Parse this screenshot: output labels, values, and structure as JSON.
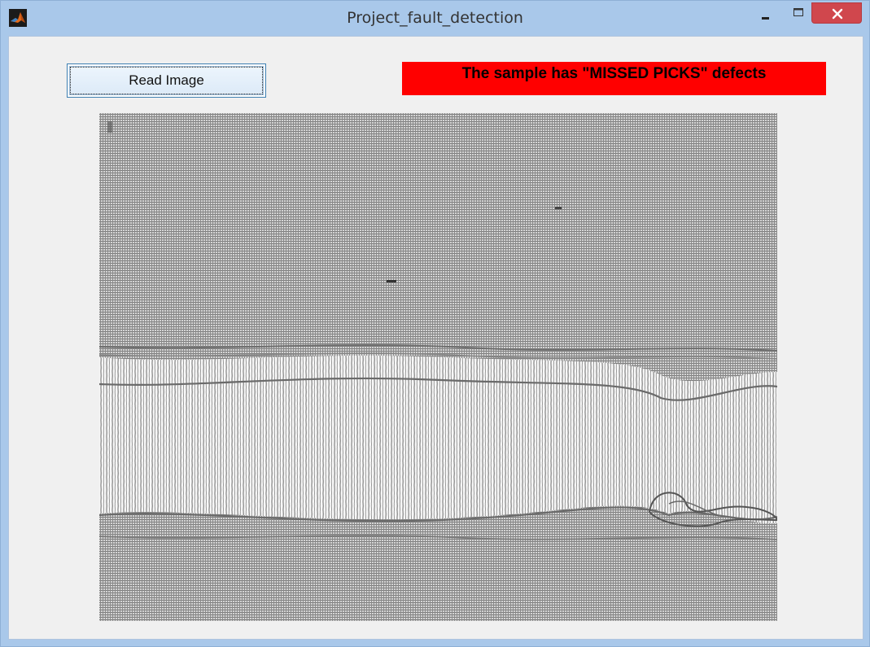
{
  "window": {
    "title": "Project_fault_detection",
    "icon": "matlab-icon",
    "controls": {
      "minimize_icon": "minimize-icon",
      "maximize_icon": "maximize-icon",
      "close_icon": "close-icon"
    }
  },
  "toolbar": {
    "read_image_label": "Read Image"
  },
  "status": {
    "message": "The sample has \"MISSED PICKS\" defects",
    "background_color": "#ff0000"
  },
  "image": {
    "subject": "woven-fabric-sample"
  }
}
